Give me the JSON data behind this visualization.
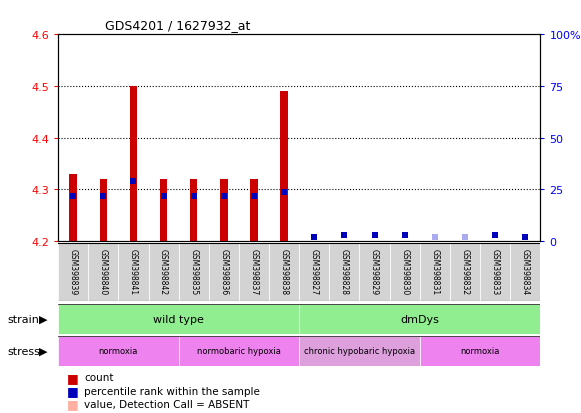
{
  "title": "GDS4201 / 1627932_at",
  "samples": [
    "GSM398839",
    "GSM398840",
    "GSM398841",
    "GSM398842",
    "GSM398835",
    "GSM398836",
    "GSM398837",
    "GSM398838",
    "GSM398827",
    "GSM398828",
    "GSM398829",
    "GSM398830",
    "GSM398831",
    "GSM398832",
    "GSM398833",
    "GSM398834"
  ],
  "red_values": [
    4.33,
    4.32,
    4.5,
    4.32,
    4.32,
    4.32,
    4.32,
    4.49,
    null,
    null,
    null,
    null,
    null,
    null,
    null,
    null
  ],
  "blue_values": [
    22,
    22,
    29,
    22,
    22,
    22,
    22,
    24,
    2,
    3,
    3,
    3,
    2,
    2,
    3,
    2
  ],
  "absent_red": [
    false,
    false,
    false,
    false,
    false,
    false,
    false,
    false,
    true,
    true,
    true,
    true,
    true,
    true,
    true,
    true
  ],
  "absent_blue": [
    false,
    false,
    false,
    false,
    false,
    false,
    false,
    false,
    false,
    false,
    false,
    false,
    true,
    true,
    false,
    false
  ],
  "ylim_left": [
    4.2,
    4.6
  ],
  "ylim_right": [
    0,
    100
  ],
  "yticks_left": [
    4.2,
    4.3,
    4.4,
    4.5,
    4.6
  ],
  "yticks_right": [
    0,
    25,
    50,
    75,
    100
  ],
  "base": 4.2,
  "strain_groups": [
    {
      "label": "wild type",
      "start": 0,
      "end": 8,
      "color": "#90EE90"
    },
    {
      "label": "dmDys",
      "start": 8,
      "end": 16,
      "color": "#90EE90"
    }
  ],
  "stress_groups": [
    {
      "label": "normoxia",
      "start": 0,
      "end": 4,
      "color": "#EE82EE"
    },
    {
      "label": "normobaric hypoxia",
      "start": 4,
      "end": 8,
      "color": "#EE82EE"
    },
    {
      "label": "chronic hypobaric hypoxia",
      "start": 8,
      "end": 12,
      "color": "#DDA0DD"
    },
    {
      "label": "normoxia",
      "start": 12,
      "end": 16,
      "color": "#EE82EE"
    }
  ],
  "red_color": "#CC0000",
  "blue_color": "#0000BB",
  "absent_red_color": "#FFB0A0",
  "absent_blue_color": "#AAAAEE",
  "bg_color": "#FFFFFF",
  "label_bg": "#D3D3D3",
  "bar_width": 0.25,
  "blue_marker_size": 5
}
